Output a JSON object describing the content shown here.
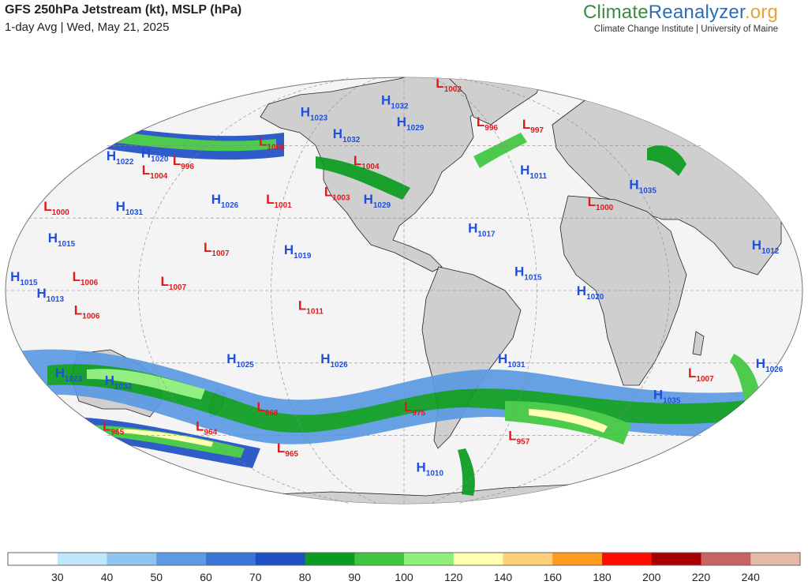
{
  "header": {
    "title": "GFS 250hPa Jetstream (kt), MSLP (hPa)",
    "subtitle": "1-day Avg | Wed, May 21, 2025",
    "brand_part1": "Climate",
    "brand_part2": "Reanalyzer",
    "brand_part3": ".org",
    "brand_subtitle": "Climate Change Institute | University of Maine"
  },
  "colors": {
    "high": "#1f4fe0",
    "low": "#e01a1a",
    "land": "#cfcfcf",
    "ocean": "#f4f4f4"
  },
  "pressure_centers": [
    {
      "type": "H",
      "value": "1022",
      "lon": -168,
      "lat": 54
    },
    {
      "type": "H",
      "value": "1020",
      "lon": -150,
      "lat": 55
    },
    {
      "type": "L",
      "value": "1004",
      "lon": -140,
      "lat": 48
    },
    {
      "type": "L",
      "value": "996",
      "lon": -128,
      "lat": 52
    },
    {
      "type": "L",
      "value": "1000",
      "lon": -175,
      "lat": 33
    },
    {
      "type": "H",
      "value": "1031",
      "lon": -140,
      "lat": 33
    },
    {
      "type": "H",
      "value": "1015",
      "lon": -165,
      "lat": 20
    },
    {
      "type": "L",
      "value": "1006",
      "lon": -150,
      "lat": 4
    },
    {
      "type": "H",
      "value": "1015",
      "lon": -178,
      "lat": 4
    },
    {
      "type": "H",
      "value": "1013",
      "lon": -166,
      "lat": -3
    },
    {
      "type": "L",
      "value": "1006",
      "lon": -150,
      "lat": -10
    },
    {
      "type": "L",
      "value": "1007",
      "lon": -110,
      "lat": 2
    },
    {
      "type": "H",
      "value": "1023",
      "lon": -78,
      "lat": 72
    },
    {
      "type": "L",
      "value": "1008",
      "lon": -88,
      "lat": 60
    },
    {
      "type": "H",
      "value": "1026",
      "lon": -95,
      "lat": 36
    },
    {
      "type": "L",
      "value": "1001",
      "lon": -68,
      "lat": 36
    },
    {
      "type": "L",
      "value": "1007",
      "lon": -92,
      "lat": 16
    },
    {
      "type": "H",
      "value": "1019",
      "lon": -55,
      "lat": 15
    },
    {
      "type": "H",
      "value": "1032",
      "lon": -20,
      "lat": 77
    },
    {
      "type": "H",
      "value": "1029",
      "lon": -5,
      "lat": 68
    },
    {
      "type": "H",
      "value": "1032",
      "lon": -45,
      "lat": 63
    },
    {
      "type": "L",
      "value": "1004",
      "lon": -28,
      "lat": 52
    },
    {
      "type": "L",
      "value": "1003",
      "lon": -40,
      "lat": 39
    },
    {
      "type": "H",
      "value": "1029",
      "lon": -20,
      "lat": 36
    },
    {
      "type": "L",
      "value": "1002",
      "lon": 40,
      "lat": 84
    },
    {
      "type": "L",
      "value": "996",
      "lon": 50,
      "lat": 68
    },
    {
      "type": "L",
      "value": "997",
      "lon": 80,
      "lat": 67
    },
    {
      "type": "H",
      "value": "1011",
      "lon": 62,
      "lat": 48
    },
    {
      "type": "H",
      "value": "1035",
      "lon": 115,
      "lat": 42
    },
    {
      "type": "L",
      "value": "1000",
      "lon": 90,
      "lat": 35
    },
    {
      "type": "H",
      "value": "1017",
      "lon": 30,
      "lat": 24
    },
    {
      "type": "H",
      "value": "1012",
      "lon": 160,
      "lat": 17
    },
    {
      "type": "H",
      "value": "1015",
      "lon": 50,
      "lat": 6
    },
    {
      "type": "H",
      "value": "1020",
      "lon": 78,
      "lat": -2
    },
    {
      "type": "L",
      "value": "1011",
      "lon": -48,
      "lat": -8
    },
    {
      "type": "H",
      "value": "1026",
      "lon": 170,
      "lat": -32
    },
    {
      "type": "H",
      "value": "1023",
      "lon": -172,
      "lat": -36
    },
    {
      "type": "H",
      "value": "1032",
      "lon": -150,
      "lat": -39
    },
    {
      "type": "H",
      "value": "1025",
      "lon": -85,
      "lat": -30
    },
    {
      "type": "H",
      "value": "1026",
      "lon": -40,
      "lat": -30
    },
    {
      "type": "H",
      "value": "1031",
      "lon": 45,
      "lat": -30
    },
    {
      "type": "L",
      "value": "1007",
      "lon": 140,
      "lat": -36
    },
    {
      "type": "H",
      "value": "1035",
      "lon": 130,
      "lat": -45
    },
    {
      "type": "L",
      "value": "968",
      "lon": -80,
      "lat": -50
    },
    {
      "type": "L",
      "value": "975",
      "lon": 0,
      "lat": -50
    },
    {
      "type": "L",
      "value": "965",
      "lon": -178,
      "lat": -58
    },
    {
      "type": "L",
      "value": "964",
      "lon": -123,
      "lat": -58
    },
    {
      "type": "L",
      "value": "965",
      "lon": -86,
      "lat": -67
    },
    {
      "type": "L",
      "value": "957",
      "lon": 65,
      "lat": -62
    },
    {
      "type": "H",
      "value": "1010",
      "lon": 10,
      "lat": -75
    }
  ],
  "colorbar": {
    "ticks": [
      "30",
      "40",
      "50",
      "60",
      "70",
      "80",
      "90",
      "100",
      "120",
      "140",
      "160",
      "180",
      "200",
      "220",
      "240"
    ],
    "colors": [
      "#ffffff",
      "#bfe6fa",
      "#8ec4ee",
      "#5c9ae3",
      "#3a75d8",
      "#1e4fc4",
      "#0a9c20",
      "#3ec73e",
      "#8ef07a",
      "#ffffb0",
      "#ffd078",
      "#ff9a1c",
      "#ff0a00",
      "#a80000",
      "#c86464",
      "#e3b9a8"
    ]
  }
}
